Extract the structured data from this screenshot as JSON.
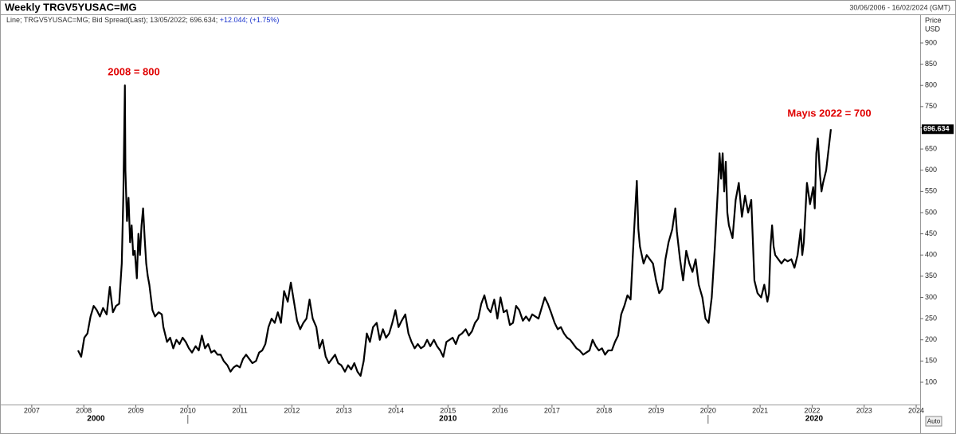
{
  "chart_data": {
    "type": "line",
    "title": "Weekly TRGV5YUSAC=MG",
    "date_range": "30/06/2006 - 16/02/2024 (GMT)",
    "legend_info": "Line; TRGV5YUSAC=MG; Bid Spread(Last); 13/05/2022; 696.634;",
    "legend_change": "+12.044;",
    "legend_change_pct": "(+1.75%)",
    "y_label": "Price",
    "y_unit": "USD",
    "auto_button": "Auto",
    "annotations": [
      "2008 = 800",
      "Mayıs 2022 = 700"
    ],
    "xlim": [
      2006.466,
      2024.076
    ],
    "xticks": [
      2007,
      2008,
      2009,
      2010,
      2011,
      2012,
      2013,
      2014,
      2015,
      2016,
      2017,
      2018,
      2019,
      2020,
      2021,
      2022,
      2023,
      2024
    ],
    "decades": [
      2000,
      2010,
      2020
    ],
    "ylim": [
      47.4,
      963.8
    ],
    "yticks": [
      100,
      150,
      200,
      250,
      300,
      350,
      400,
      450,
      500,
      550,
      600,
      650,
      700,
      750,
      800,
      850,
      900
    ],
    "grid": false,
    "x": [
      2007.89,
      2007.95,
      2008.01,
      2008.07,
      2008.13,
      2008.19,
      2008.25,
      2008.31,
      2008.37,
      2008.44,
      2008.5,
      2008.56,
      2008.62,
      2008.68,
      2008.73,
      2008.76,
      2008.79,
      2008.8,
      2008.83,
      2008.86,
      2008.89,
      2008.92,
      2008.95,
      2008.98,
      2009.02,
      2009.05,
      2009.08,
      2009.11,
      2009.14,
      2009.17,
      2009.2,
      2009.23,
      2009.26,
      2009.29,
      2009.32,
      2009.37,
      2009.44,
      2009.5,
      2009.53,
      2009.6,
      2009.66,
      2009.72,
      2009.78,
      2009.84,
      2009.9,
      2009.96,
      2010.02,
      2010.08,
      2010.15,
      2010.21,
      2010.27,
      2010.33,
      2010.39,
      2010.45,
      2010.51,
      2010.57,
      2010.63,
      2010.69,
      2010.76,
      2010.82,
      2010.88,
      2010.94,
      2011.0,
      2011.06,
      2011.12,
      2011.18,
      2011.24,
      2011.31,
      2011.37,
      2011.43,
      2011.49,
      2011.55,
      2011.61,
      2011.67,
      2011.73,
      2011.79,
      2011.85,
      2011.92,
      2011.98,
      2012.04,
      2012.1,
      2012.16,
      2012.22,
      2012.28,
      2012.34,
      2012.4,
      2012.47,
      2012.53,
      2012.59,
      2012.65,
      2012.71,
      2012.77,
      2012.83,
      2012.89,
      2012.95,
      2013.02,
      2013.08,
      2013.14,
      2013.2,
      2013.26,
      2013.32,
      2013.38,
      2013.44,
      2013.5,
      2013.56,
      2013.63,
      2013.69,
      2013.75,
      2013.81,
      2013.87,
      2013.93,
      2013.99,
      2014.05,
      2014.11,
      2014.18,
      2014.24,
      2014.3,
      2014.36,
      2014.42,
      2014.48,
      2014.54,
      2014.6,
      2014.66,
      2014.73,
      2014.79,
      2014.85,
      2014.91,
      2014.97,
      2015.03,
      2015.09,
      2015.15,
      2015.21,
      2015.27,
      2015.34,
      2015.4,
      2015.46,
      2015.52,
      2015.58,
      2015.64,
      2015.7,
      2015.76,
      2015.82,
      2015.89,
      2015.95,
      2016.01,
      2016.07,
      2016.13,
      2016.19,
      2016.25,
      2016.31,
      2016.37,
      2016.44,
      2016.5,
      2016.56,
      2016.62,
      2016.68,
      2016.74,
      2016.8,
      2016.86,
      2016.92,
      2016.98,
      2017.05,
      2017.11,
      2017.17,
      2017.23,
      2017.29,
      2017.35,
      2017.41,
      2017.47,
      2017.53,
      2017.6,
      2017.66,
      2017.72,
      2017.78,
      2017.84,
      2017.9,
      2017.96,
      2018.02,
      2018.08,
      2018.15,
      2018.21,
      2018.27,
      2018.33,
      2018.39,
      2018.45,
      2018.51,
      2018.57,
      2018.63,
      2018.66,
      2018.69,
      2018.76,
      2018.82,
      2018.88,
      2018.94,
      2019.0,
      2019.06,
      2019.12,
      2019.18,
      2019.24,
      2019.31,
      2019.37,
      2019.4,
      2019.46,
      2019.52,
      2019.58,
      2019.64,
      2019.7,
      2019.76,
      2019.82,
      2019.89,
      2019.95,
      2020.01,
      2020.07,
      2020.13,
      2020.19,
      2020.22,
      2020.25,
      2020.28,
      2020.31,
      2020.34,
      2020.37,
      2020.4,
      2020.47,
      2020.53,
      2020.59,
      2020.65,
      2020.71,
      2020.77,
      2020.83,
      2020.89,
      2020.95,
      2021.02,
      2021.08,
      2021.14,
      2021.17,
      2021.2,
      2021.23,
      2021.26,
      2021.29,
      2021.35,
      2021.41,
      2021.47,
      2021.53,
      2021.6,
      2021.66,
      2021.72,
      2021.78,
      2021.81,
      2021.84,
      2021.9,
      2021.96,
      2022.02,
      2022.05,
      2022.08,
      2022.11,
      2022.15,
      2022.18,
      2022.21,
      2022.27,
      2022.36
    ],
    "series": [
      {
        "name": "TRGV5YUSAC=MG",
        "color": "#000000",
        "values": [
          175,
          160,
          205,
          215,
          255,
          280,
          270,
          255,
          275,
          260,
          325,
          265,
          280,
          285,
          380,
          540,
          800,
          600,
          480,
          535,
          430,
          470,
          400,
          410,
          345,
          450,
          400,
          470,
          510,
          440,
          380,
          350,
          330,
          300,
          270,
          255,
          265,
          260,
          230,
          195,
          205,
          180,
          200,
          190,
          205,
          195,
          180,
          170,
          185,
          175,
          210,
          180,
          190,
          170,
          175,
          165,
          165,
          150,
          140,
          125,
          135,
          140,
          135,
          155,
          165,
          155,
          145,
          150,
          170,
          175,
          190,
          230,
          250,
          240,
          265,
          240,
          315,
          290,
          335,
          290,
          245,
          225,
          240,
          250,
          295,
          250,
          230,
          180,
          200,
          160,
          145,
          155,
          165,
          145,
          140,
          125,
          140,
          130,
          145,
          125,
          115,
          150,
          215,
          195,
          230,
          240,
          200,
          225,
          205,
          215,
          240,
          270,
          230,
          245,
          260,
          215,
          195,
          180,
          190,
          180,
          185,
          200,
          185,
          200,
          185,
          175,
          160,
          195,
          200,
          205,
          190,
          210,
          215,
          225,
          210,
          220,
          240,
          250,
          285,
          305,
          275,
          265,
          295,
          250,
          300,
          265,
          270,
          235,
          240,
          280,
          270,
          245,
          255,
          245,
          260,
          255,
          250,
          275,
          300,
          285,
          265,
          240,
          225,
          230,
          215,
          205,
          200,
          190,
          180,
          175,
          165,
          170,
          175,
          200,
          185,
          175,
          180,
          165,
          175,
          175,
          195,
          210,
          260,
          280,
          305,
          295,
          440,
          575,
          460,
          420,
          380,
          400,
          390,
          380,
          340,
          310,
          320,
          390,
          430,
          460,
          510,
          455,
          390,
          340,
          410,
          380,
          360,
          390,
          330,
          300,
          250,
          240,
          300,
          420,
          560,
          640,
          580,
          640,
          550,
          620,
          500,
          470,
          440,
          530,
          570,
          490,
          540,
          500,
          530,
          340,
          310,
          300,
          330,
          290,
          310,
          420,
          470,
          420,
          400,
          390,
          380,
          390,
          385,
          390,
          370,
          400,
          460,
          400,
          430,
          570,
          520,
          560,
          510,
          640,
          675,
          590,
          550,
          570,
          600,
          696.634
        ]
      }
    ]
  }
}
